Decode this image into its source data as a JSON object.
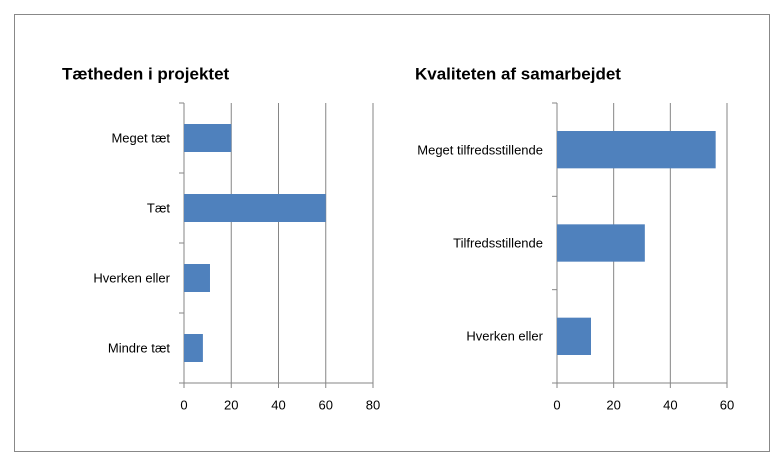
{
  "chart_data": [
    {
      "type": "bar",
      "orientation": "horizontal",
      "title": "Tætheden i projektet",
      "categories": [
        "Meget tæt",
        "Tæt",
        "Hverken eller",
        "Mindre tæt"
      ],
      "values": [
        20,
        60,
        11,
        8
      ],
      "color": "#4f81bd",
      "xlim": [
        0,
        80
      ],
      "xticks": [
        0,
        20,
        40,
        60,
        80
      ],
      "grid": true
    },
    {
      "type": "bar",
      "orientation": "horizontal",
      "title": "Kvaliteten af samarbejdet",
      "categories": [
        "Meget tilfredsstillende",
        "Tilfredsstillende",
        "Hverken eller"
      ],
      "values": [
        56,
        31,
        12
      ],
      "color": "#4f81bd",
      "xlim": [
        0,
        60
      ],
      "xticks": [
        0,
        20,
        40,
        60
      ],
      "grid": true
    }
  ]
}
